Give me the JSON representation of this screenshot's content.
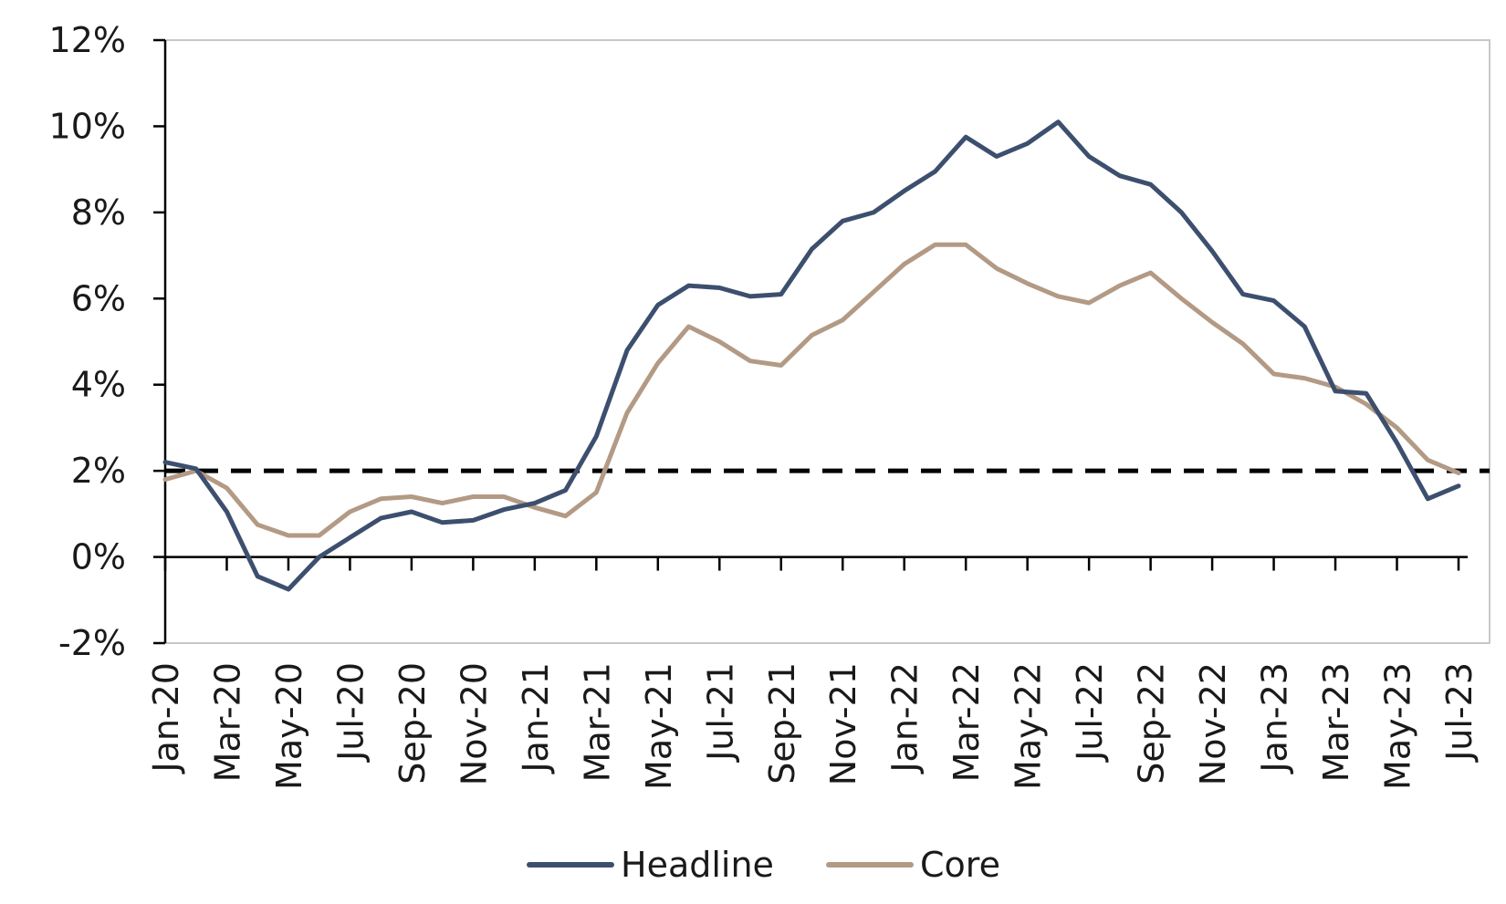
{
  "chart_data": {
    "type": "line",
    "title": "",
    "xlabel": "",
    "ylabel": "",
    "x": [
      "Jan-20",
      "Feb-20",
      "Mar-20",
      "Apr-20",
      "May-20",
      "Jun-20",
      "Jul-20",
      "Aug-20",
      "Sep-20",
      "Oct-20",
      "Nov-20",
      "Dec-20",
      "Jan-21",
      "Feb-21",
      "Mar-21",
      "Apr-21",
      "May-21",
      "Jun-21",
      "Jul-21",
      "Aug-21",
      "Sep-21",
      "Oct-21",
      "Nov-21",
      "Dec-21",
      "Jan-22",
      "Feb-22",
      "Mar-22",
      "Apr-22",
      "May-22",
      "Jun-22",
      "Jul-22",
      "Aug-22",
      "Sep-22",
      "Oct-22",
      "Nov-22",
      "Dec-22",
      "Jan-23",
      "Feb-23",
      "Mar-23",
      "Apr-23",
      "May-23",
      "Jun-23",
      "Jul-23"
    ],
    "x_tick_labels": [
      "Jan-20",
      "Mar-20",
      "May-20",
      "Jul-20",
      "Sep-20",
      "Nov-20",
      "Jan-21",
      "Mar-21",
      "May-21",
      "Jul-21",
      "Sep-21",
      "Nov-21",
      "Jan-22",
      "Mar-22",
      "May-22",
      "Jul-22",
      "Sep-22",
      "Nov-22",
      "Jan-23",
      "Mar-23",
      "May-23",
      "Jul-23"
    ],
    "series": [
      {
        "name": "Headline",
        "color": "#3d4f6e",
        "values": [
          2.2,
          2.05,
          1.05,
          -0.45,
          -0.75,
          0.0,
          0.45,
          0.9,
          1.05,
          0.8,
          0.85,
          1.1,
          1.25,
          1.55,
          2.8,
          4.8,
          5.85,
          6.3,
          6.25,
          6.05,
          6.1,
          7.15,
          7.8,
          8.0,
          8.5,
          8.95,
          9.75,
          9.3,
          9.6,
          10.1,
          9.3,
          8.85,
          8.65,
          8.0,
          7.1,
          6.1,
          5.95,
          5.35,
          3.85,
          3.8,
          2.65,
          1.35,
          1.65
        ]
      },
      {
        "name": "Core",
        "color": "#b39a85",
        "values": [
          1.8,
          2.0,
          1.6,
          0.75,
          0.5,
          0.5,
          1.05,
          1.35,
          1.4,
          1.25,
          1.4,
          1.4,
          1.15,
          0.95,
          1.5,
          3.35,
          4.5,
          5.35,
          5.0,
          4.55,
          4.45,
          5.15,
          5.5,
          6.15,
          6.8,
          7.25,
          7.25,
          6.7,
          6.35,
          6.05,
          5.9,
          6.3,
          6.6,
          6.0,
          5.45,
          4.95,
          4.25,
          4.15,
          3.95,
          3.55,
          3.0,
          2.25,
          1.95
        ]
      }
    ],
    "reference_line": {
      "value": 2,
      "style": "dashed",
      "color": "#000000"
    },
    "ylim": [
      -2,
      12
    ],
    "y_ticks": [
      -2,
      0,
      2,
      4,
      6,
      8,
      10,
      12
    ],
    "y_tick_labels": [
      "-2%",
      "0%",
      "2%",
      "4%",
      "6%",
      "8%",
      "10%",
      "12%"
    ],
    "grid": false,
    "legend": {
      "position": "bottom-center",
      "entries": [
        "Headline",
        "Core"
      ]
    }
  }
}
